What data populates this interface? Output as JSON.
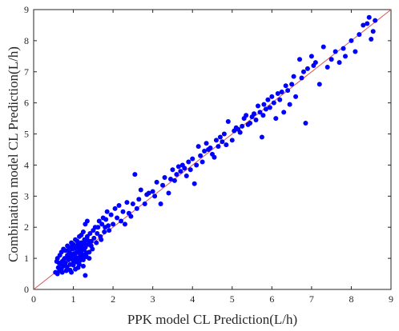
{
  "chart_data": {
    "type": "scatter",
    "xlabel": "PPK model CL Prediction(L/h)",
    "ylabel": "Combination model CL Prediction(L/h)",
    "xlim": [
      0,
      9
    ],
    "ylim": [
      0,
      9
    ],
    "x_ticks": [
      "0",
      "1",
      "2",
      "3",
      "4",
      "5",
      "6",
      "7",
      "8",
      "9"
    ],
    "y_ticks": [
      "0",
      "1",
      "2",
      "3",
      "4",
      "5",
      "6",
      "7",
      "8",
      "9"
    ],
    "grid": false,
    "reference_line": {
      "from": [
        0,
        0
      ],
      "to": [
        9,
        9
      ],
      "color": "#d9534f"
    },
    "marker_color": "#0000ff",
    "series": [
      {
        "points": [
          [
            0.55,
            0.55
          ],
          [
            0.6,
            0.5
          ],
          [
            0.62,
            0.7
          ],
          [
            0.65,
            0.6
          ],
          [
            0.68,
            0.8
          ],
          [
            0.7,
            0.65
          ],
          [
            0.72,
            0.9
          ],
          [
            0.75,
            0.75
          ],
          [
            0.78,
            1.0
          ],
          [
            0.8,
            0.85
          ],
          [
            0.82,
            0.6
          ],
          [
            0.85,
            1.1
          ],
          [
            0.88,
            0.95
          ],
          [
            0.9,
            1.2
          ],
          [
            0.92,
            0.8
          ],
          [
            0.95,
            1.05
          ],
          [
            0.98,
            1.3
          ],
          [
            1.0,
            0.9
          ],
          [
            1.02,
            1.15
          ],
          [
            1.05,
            1.0
          ],
          [
            1.08,
            1.4
          ],
          [
            1.1,
            1.2
          ],
          [
            1.12,
            0.7
          ],
          [
            1.15,
            1.3
          ],
          [
            1.18,
            1.1
          ],
          [
            1.2,
            1.5
          ],
          [
            1.22,
            1.25
          ],
          [
            1.25,
            0.95
          ],
          [
            1.28,
            1.6
          ],
          [
            1.3,
            1.35
          ],
          [
            1.32,
            1.05
          ],
          [
            1.35,
            1.7
          ],
          [
            1.38,
            1.45
          ],
          [
            1.4,
            1.2
          ],
          [
            1.42,
            1.8
          ],
          [
            1.45,
            1.55
          ],
          [
            1.48,
            1.3
          ],
          [
            1.5,
            1.9
          ],
          [
            1.52,
            1.65
          ],
          [
            1.55,
            2.0
          ],
          [
            0.6,
            1.0
          ],
          [
            0.7,
            1.2
          ],
          [
            0.75,
            1.3
          ],
          [
            0.8,
            1.25
          ],
          [
            0.85,
            1.4
          ],
          [
            0.9,
            1.35
          ],
          [
            0.95,
            1.5
          ],
          [
            1.0,
            1.45
          ],
          [
            1.05,
            1.6
          ],
          [
            1.1,
            1.55
          ],
          [
            1.15,
            1.7
          ],
          [
            1.2,
            1.75
          ],
          [
            1.25,
            1.85
          ],
          [
            1.3,
            2.1
          ],
          [
            1.35,
            2.2
          ],
          [
            0.95,
            0.55
          ],
          [
            1.05,
            0.65
          ],
          [
            1.15,
            0.8
          ],
          [
            1.25,
            0.75
          ],
          [
            1.3,
            0.45
          ],
          [
            0.88,
            1.05
          ],
          [
            0.93,
            1.15
          ],
          [
            0.97,
            0.98
          ],
          [
            1.03,
            1.08
          ],
          [
            1.07,
            1.18
          ],
          [
            1.13,
            1.02
          ],
          [
            1.17,
            1.22
          ],
          [
            1.23,
            1.12
          ],
          [
            1.27,
            1.28
          ],
          [
            1.33,
            1.18
          ],
          [
            1.6,
            1.8
          ],
          [
            1.65,
            2.2
          ],
          [
            1.7,
            1.6
          ],
          [
            1.75,
            2.3
          ],
          [
            1.8,
            2.0
          ],
          [
            1.85,
            2.5
          ],
          [
            1.9,
            1.9
          ],
          [
            1.95,
            2.4
          ],
          [
            2.0,
            2.1
          ],
          [
            2.05,
            2.6
          ],
          [
            2.1,
            2.3
          ],
          [
            2.15,
            2.7
          ],
          [
            2.2,
            2.2
          ],
          [
            2.25,
            2.5
          ],
          [
            2.3,
            2.1
          ],
          [
            2.35,
            2.8
          ],
          [
            2.4,
            2.45
          ],
          [
            2.5,
            2.75
          ],
          [
            2.55,
            3.7
          ],
          [
            2.6,
            2.6
          ],
          [
            2.7,
            3.2
          ],
          [
            2.8,
            2.75
          ],
          [
            2.9,
            3.1
          ],
          [
            3.0,
            3.15
          ],
          [
            3.1,
            3.45
          ],
          [
            3.2,
            2.75
          ],
          [
            3.3,
            3.6
          ],
          [
            3.4,
            3.1
          ],
          [
            3.5,
            3.85
          ],
          [
            3.6,
            3.7
          ],
          [
            3.7,
            3.8
          ],
          [
            3.75,
            4.0
          ],
          [
            3.8,
            3.9
          ],
          [
            3.85,
            3.65
          ],
          [
            3.9,
            4.1
          ],
          [
            3.95,
            3.85
          ],
          [
            4.0,
            4.2
          ],
          [
            4.05,
            3.4
          ],
          [
            4.1,
            4.0
          ],
          [
            4.15,
            4.6
          ],
          [
            4.2,
            4.3
          ],
          [
            4.25,
            4.1
          ],
          [
            4.3,
            4.45
          ],
          [
            4.35,
            4.7
          ],
          [
            4.4,
            4.5
          ],
          [
            4.5,
            4.35
          ],
          [
            4.6,
            4.8
          ],
          [
            4.7,
            4.9
          ],
          [
            4.8,
            5.0
          ],
          [
            4.85,
            4.65
          ],
          [
            4.9,
            5.4
          ],
          [
            5.0,
            4.8
          ],
          [
            5.1,
            5.2
          ],
          [
            5.2,
            5.05
          ],
          [
            5.3,
            5.5
          ],
          [
            5.4,
            5.3
          ],
          [
            5.5,
            5.55
          ],
          [
            5.6,
            5.45
          ],
          [
            5.7,
            5.7
          ],
          [
            5.75,
            4.9
          ],
          [
            5.8,
            5.95
          ],
          [
            5.85,
            5.8
          ],
          [
            5.9,
            6.1
          ],
          [
            5.95,
            5.85
          ],
          [
            6.0,
            6.2
          ],
          [
            6.05,
            6.0
          ],
          [
            6.1,
            5.5
          ],
          [
            6.15,
            6.3
          ],
          [
            6.2,
            6.1
          ],
          [
            6.25,
            6.35
          ],
          [
            6.3,
            5.7
          ],
          [
            6.35,
            6.55
          ],
          [
            6.4,
            6.4
          ],
          [
            6.45,
            5.95
          ],
          [
            6.5,
            6.6
          ],
          [
            6.55,
            6.85
          ],
          [
            6.6,
            6.2
          ],
          [
            6.7,
            7.4
          ],
          [
            6.75,
            6.8
          ],
          [
            6.8,
            7.0
          ],
          [
            6.85,
            5.35
          ],
          [
            6.9,
            7.1
          ],
          [
            7.0,
            7.5
          ],
          [
            7.05,
            7.2
          ],
          [
            7.1,
            7.3
          ],
          [
            7.2,
            6.6
          ],
          [
            7.3,
            7.8
          ],
          [
            7.4,
            7.15
          ],
          [
            7.5,
            7.4
          ],
          [
            7.6,
            7.65
          ],
          [
            7.7,
            7.3
          ],
          [
            7.8,
            7.75
          ],
          [
            7.85,
            7.5
          ],
          [
            8.0,
            8.0
          ],
          [
            8.1,
            7.65
          ],
          [
            8.2,
            8.2
          ],
          [
            8.3,
            8.5
          ],
          [
            8.4,
            8.55
          ],
          [
            8.45,
            8.75
          ],
          [
            8.5,
            8.05
          ],
          [
            8.55,
            8.3
          ],
          [
            8.6,
            8.65
          ],
          [
            1.45,
            1.4
          ],
          [
            1.58,
            1.5
          ],
          [
            1.62,
            2.0
          ],
          [
            1.68,
            1.7
          ],
          [
            1.72,
            2.1
          ],
          [
            1.78,
            1.85
          ],
          [
            1.82,
            2.25
          ],
          [
            1.88,
            2.05
          ],
          [
            0.58,
            0.9
          ],
          [
            0.64,
            0.85
          ],
          [
            0.66,
            1.1
          ],
          [
            0.72,
            0.55
          ],
          [
            0.76,
            0.95
          ],
          [
            0.84,
            0.72
          ],
          [
            0.86,
            1.25
          ],
          [
            0.92,
            0.62
          ],
          [
            0.96,
            1.38
          ],
          [
            1.0,
            0.78
          ],
          [
            1.04,
            1.32
          ],
          [
            1.08,
            0.88
          ],
          [
            1.12,
            1.45
          ],
          [
            1.16,
            0.92
          ],
          [
            1.2,
            1.38
          ],
          [
            1.24,
            1.02
          ],
          [
            1.28,
            1.48
          ],
          [
            1.32,
            1.1
          ],
          [
            1.36,
            1.58
          ],
          [
            1.4,
            1.0
          ],
          [
            2.45,
            2.35
          ],
          [
            2.65,
            2.9
          ],
          [
            2.85,
            3.05
          ],
          [
            3.05,
            3.0
          ],
          [
            3.25,
            3.35
          ],
          [
            3.45,
            3.55
          ],
          [
            3.55,
            3.5
          ],
          [
            3.65,
            3.95
          ],
          [
            4.45,
            4.55
          ],
          [
            4.55,
            4.25
          ],
          [
            4.65,
            4.6
          ],
          [
            4.75,
            4.75
          ],
          [
            5.05,
            5.1
          ],
          [
            5.15,
            5.15
          ],
          [
            5.25,
            5.25
          ],
          [
            5.35,
            5.6
          ],
          [
            5.45,
            5.35
          ],
          [
            5.55,
            5.65
          ],
          [
            5.65,
            5.9
          ],
          [
            5.78,
            5.6
          ]
        ]
      }
    ]
  }
}
